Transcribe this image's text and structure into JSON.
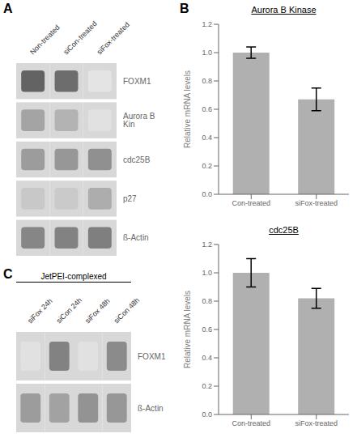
{
  "chart_data": [
    {
      "type": "blot",
      "panel_label": "A",
      "categories": [
        "Non-treated",
        "siCon-treated",
        "siFox-treated"
      ],
      "series": [
        {
          "name": "FOXM1",
          "values": [
            0.88,
            0.82,
            0.13
          ]
        },
        {
          "name": "Aurora B Kin",
          "values": [
            0.5,
            0.42,
            0.15
          ]
        },
        {
          "name": "cdc25B",
          "values": [
            0.55,
            0.58,
            0.62
          ]
        },
        {
          "name": "p27",
          "values": [
            0.3,
            0.28,
            0.45
          ]
        },
        {
          "name": "ß-Actin",
          "values": [
            0.68,
            0.7,
            0.72
          ]
        }
      ]
    },
    {
      "type": "blot",
      "panel_label": "C",
      "annotation": "JetPEI-complexed",
      "categories": [
        "siFox 24h",
        "siCon 24h",
        "siFox 48h",
        "siCon 48h"
      ],
      "series": [
        {
          "name": "FOXM1",
          "values": [
            0.15,
            0.7,
            0.15,
            0.65
          ]
        },
        {
          "name": "ß-Actin",
          "values": [
            0.55,
            0.52,
            0.6,
            0.58
          ]
        }
      ]
    },
    {
      "type": "bar",
      "panel_label": "B",
      "title": "Aurora B Kinase",
      "categories": [
        "Con-treated",
        "siFox-treated"
      ],
      "values": [
        1.0,
        0.67
      ],
      "errors": [
        0.04,
        0.08
      ],
      "ylabel": "Relative mRNA levels",
      "ylim": [
        0,
        1.2
      ],
      "yticks": [
        {
          "value": 0,
          "label": "0.0"
        },
        {
          "value": 0.2,
          "label": "0.2"
        },
        {
          "value": 0.4,
          "label": "0.4"
        },
        {
          "value": 0.6,
          "label": "0.6"
        },
        {
          "value": 0.8,
          "label": "0.8"
        },
        {
          "value": 1.0,
          "label": "1.0"
        },
        {
          "value": 1.2,
          "label": "1.2"
        }
      ],
      "color": "#b0b0b0"
    },
    {
      "type": "bar",
      "title": "cdc25B",
      "categories": [
        "Con-treated",
        "siFox-treated"
      ],
      "values": [
        1.0,
        0.82
      ],
      "errors": [
        0.1,
        0.07
      ],
      "ylabel": "Relative mRNA levels",
      "ylim": [
        0,
        1.2
      ],
      "yticks": [
        {
          "value": 0,
          "label": "0.0"
        },
        {
          "value": 0.2,
          "label": "0.2"
        },
        {
          "value": 0.4,
          "label": "0.4"
        },
        {
          "value": 0.6,
          "label": "0.6"
        },
        {
          "value": 0.8,
          "label": "0.8"
        },
        {
          "value": 1.0,
          "label": "1.0"
        },
        {
          "value": 1.2,
          "label": "1.2"
        }
      ],
      "color": "#b0b0b0"
    }
  ]
}
